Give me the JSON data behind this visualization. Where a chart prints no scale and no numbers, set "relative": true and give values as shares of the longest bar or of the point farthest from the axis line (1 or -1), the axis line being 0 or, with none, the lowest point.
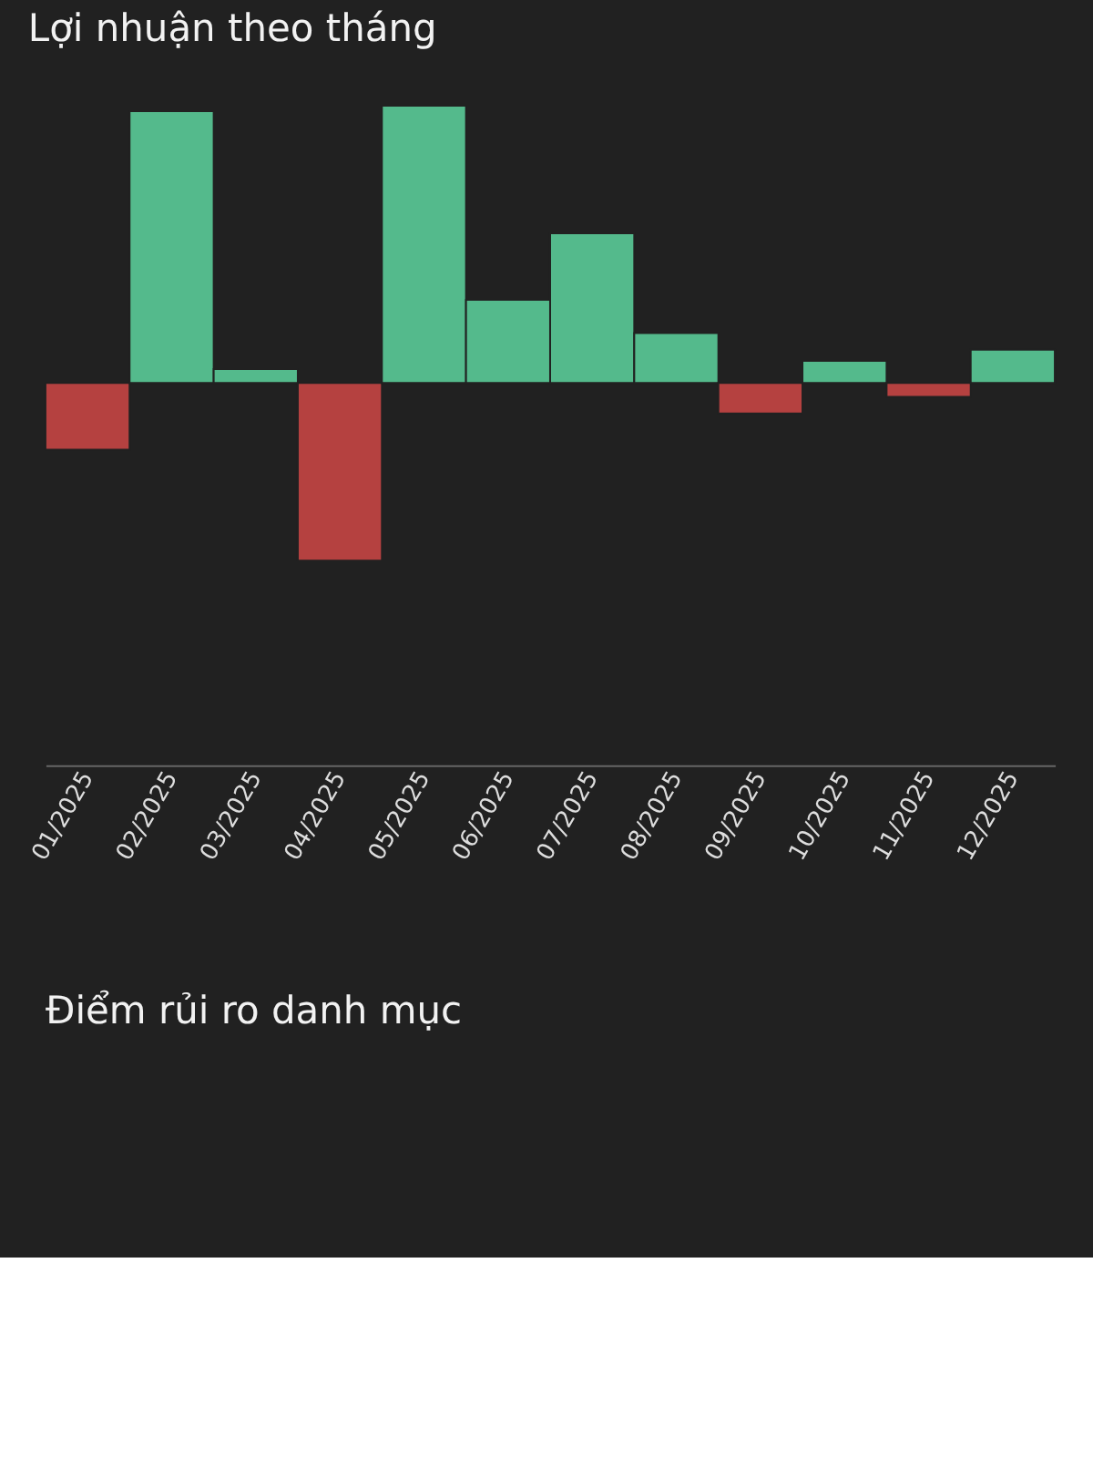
{
  "chart_data": [
    {
      "type": "bar",
      "title": "Lợi nhuận theo tháng",
      "relative": true,
      "categories": [
        "01/2025",
        "02/2025",
        "03/2025",
        "04/2025",
        "05/2025",
        "06/2025",
        "07/2025",
        "08/2025",
        "09/2025",
        "10/2025",
        "11/2025",
        "12/2025"
      ],
      "values": [
        -0.24,
        0.98,
        0.05,
        -0.64,
        1,
        0.3,
        0.54,
        0.18,
        -0.11,
        0.08,
        -0.05,
        0.12
      ],
      "colors": [
        "#b54140",
        "#54ba8c",
        "#54ba8c",
        "#b54140",
        "#54ba8c",
        "#54ba8c",
        "#54ba8c",
        "#54ba8c",
        "#b54140",
        "#54ba8c",
        "#b54140",
        "#54ba8c"
      ],
      "grid": false
    },
    {
      "type": "other",
      "title": "Điểm rủi ro danh mục"
    }
  ]
}
